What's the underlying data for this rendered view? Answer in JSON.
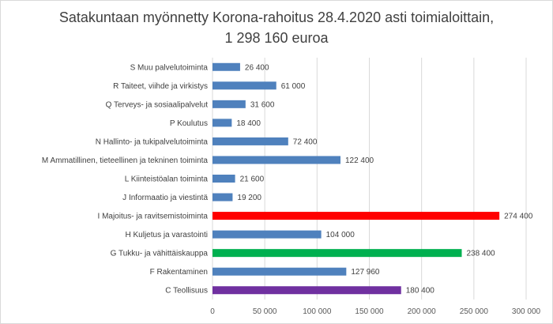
{
  "chart_data": {
    "type": "bar",
    "orientation": "horizontal",
    "title": "Satakuntaan myönnetty Korona-rahoitus 28.4.2020 asti toimialoittain,",
    "subtitle": "1 298 160 euroa",
    "xlim": [
      0,
      300000
    ],
    "xticks": [
      0,
      50000,
      100000,
      150000,
      200000,
      250000,
      300000
    ],
    "xtick_labels": [
      "0",
      "50 000",
      "100 000",
      "150 000",
      "200 000",
      "250 000",
      "300 000"
    ],
    "grid": "vertical",
    "legend": "none",
    "categories": [
      "S  Muu palvelutoiminta",
      "R  Taiteet, viihde ja virkistys",
      "Q  Terveys- ja sosiaalipalvelut",
      "P  Koulutus",
      "N  Hallinto- ja tukipalvelutoiminta",
      "M  Ammatillinen, tieteellinen ja tekninen toiminta",
      "L  Kiinteistöalan toiminta",
      "J  Informaatio ja viestintä",
      "I  Majoitus- ja ravitsemistoiminta",
      "H  Kuljetus ja varastointi",
      "G  Tukku- ja vähittäiskauppa",
      "F  Rakentaminen",
      "C  Teollisuus"
    ],
    "values": [
      26400,
      61000,
      31600,
      18400,
      72400,
      122400,
      21600,
      19200,
      274400,
      104000,
      238400,
      127960,
      180400
    ],
    "value_labels": [
      "26 400",
      "61 000",
      "31 600",
      "18 400",
      "72 400",
      "122 400",
      "21 600",
      "19 200",
      "274 400",
      "104 000",
      "238 400",
      "127 960",
      "180 400"
    ],
    "colors": [
      "#4f81bd",
      "#4f81bd",
      "#4f81bd",
      "#4f81bd",
      "#4f81bd",
      "#4f81bd",
      "#4f81bd",
      "#4f81bd",
      "#ff0000",
      "#4f81bd",
      "#00b050",
      "#4f81bd",
      "#7030a0"
    ]
  }
}
